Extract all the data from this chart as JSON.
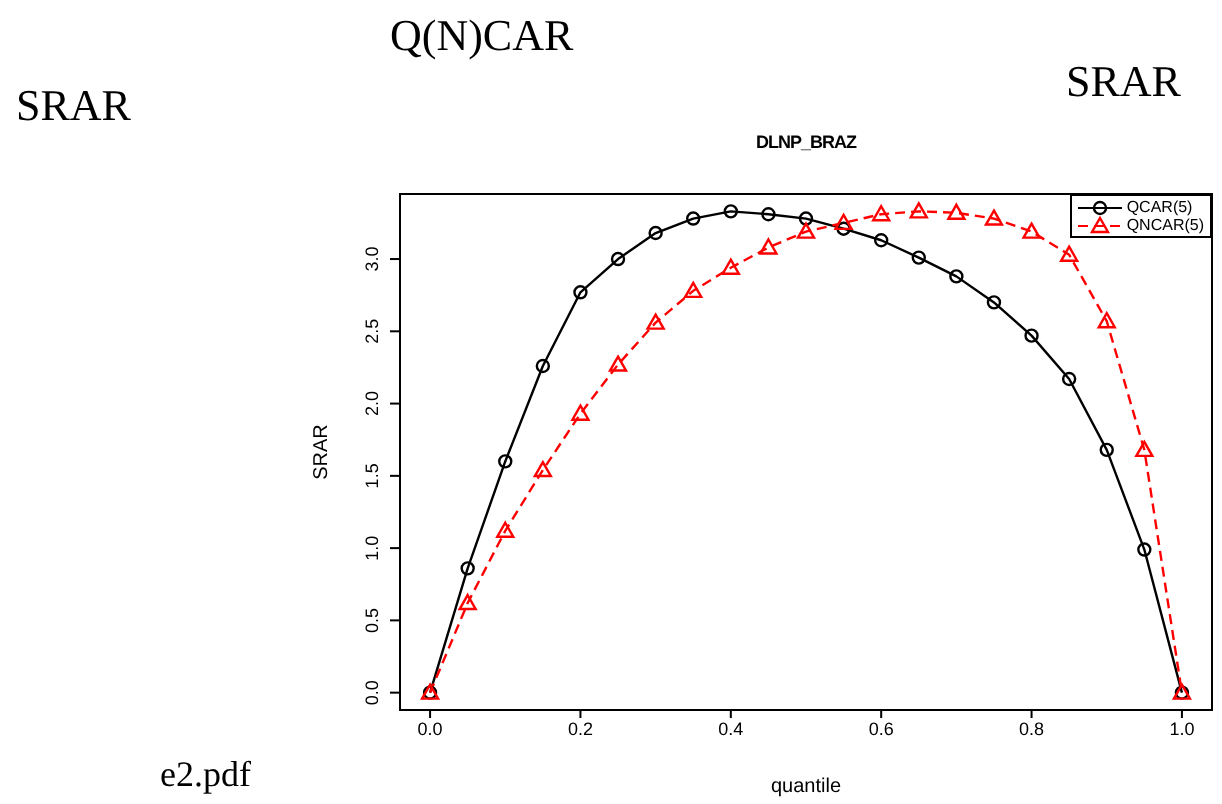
{
  "chart_data": {
    "type": "line",
    "title": "DLNP_BRAZ",
    "xlabel": "quantile",
    "ylabel": "SRAR",
    "annotations": [
      "Q(N)CAR",
      "SRAR",
      "SRAR",
      "e2.pdf"
    ],
    "x": [
      0,
      0.05,
      0.1,
      0.15,
      0.2,
      0.25,
      0.3,
      0.35,
      0.4,
      0.45,
      0.5,
      0.55,
      0.6,
      0.65,
      0.7,
      0.75,
      0.8,
      0.85,
      0.9,
      0.95,
      1.0
    ],
    "series": [
      {
        "name": "QCAR(5)",
        "color": "#000000",
        "marker": "circle",
        "line_style": "solid",
        "values": [
          0,
          0.86,
          1.6,
          2.26,
          2.77,
          3.0,
          3.18,
          3.28,
          3.33,
          3.31,
          3.28,
          3.21,
          3.13,
          3.01,
          2.88,
          2.7,
          2.47,
          2.17,
          1.68,
          0.99,
          0
        ]
      },
      {
        "name": "QNCAR(5)",
        "color": "#ff0000",
        "marker": "triangle",
        "line_style": "dashed",
        "values": [
          0,
          0.62,
          1.12,
          1.54,
          1.93,
          2.27,
          2.56,
          2.78,
          2.94,
          3.08,
          3.19,
          3.25,
          3.31,
          3.33,
          3.32,
          3.28,
          3.19,
          3.03,
          2.57,
          1.68,
          0
        ]
      }
    ],
    "xlim": [
      -0.04,
      1.04
    ],
    "ylim": [
      -0.12,
      3.45
    ],
    "xticks": [
      {
        "value": 0,
        "label": "0.0"
      },
      {
        "value": 0.2,
        "label": "0.2"
      },
      {
        "value": 0.4,
        "label": "0.4"
      },
      {
        "value": 0.6,
        "label": "0.6"
      },
      {
        "value": 0.8,
        "label": "0.8"
      },
      {
        "value": 1.0,
        "label": "1.0"
      }
    ],
    "yticks": [
      {
        "value": 0,
        "label": "0.0"
      },
      {
        "value": 0.5,
        "label": "0.5"
      },
      {
        "value": 1.0,
        "label": "1.0"
      },
      {
        "value": 1.5,
        "label": "1.5"
      },
      {
        "value": 2.0,
        "label": "2.0"
      },
      {
        "value": 2.5,
        "label": "2.5"
      },
      {
        "value": 3.0,
        "label": "3.0"
      }
    ],
    "grid": false,
    "legend": "top right"
  }
}
